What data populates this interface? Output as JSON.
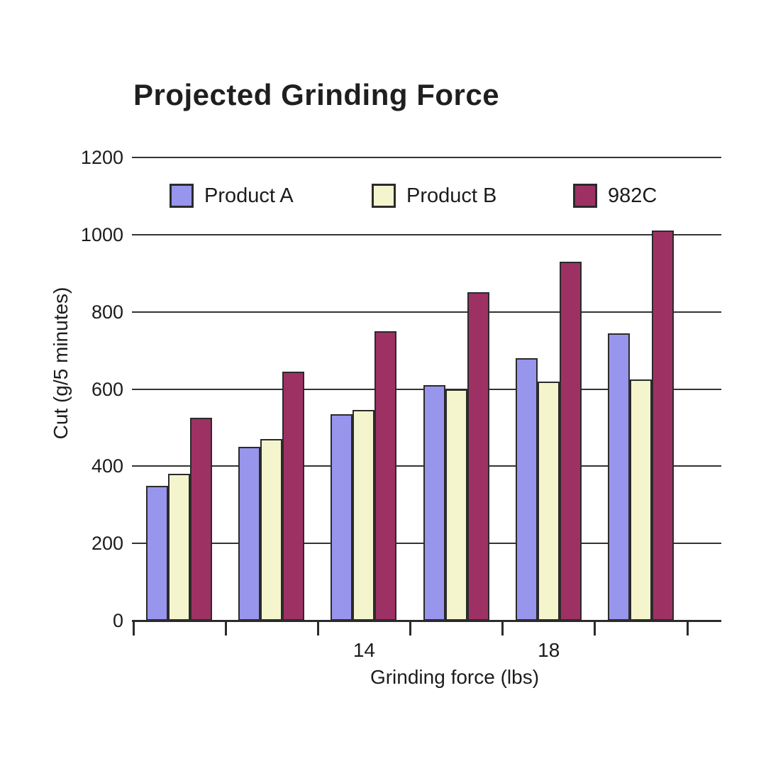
{
  "page": {
    "background": "#ffffff"
  },
  "title": "Projected Grinding Force",
  "chart_data": {
    "type": "bar",
    "title": "Projected Grinding Force",
    "xlabel": "Grinding force (lbs)",
    "ylabel": "Cut (g/5 minutes)",
    "ylim": [
      0,
      1200
    ],
    "y_ticks": [
      0,
      200,
      400,
      600,
      800,
      1000,
      1200
    ],
    "x_tick_labels": [
      "",
      "",
      "14",
      "",
      "18",
      ""
    ],
    "n_groups": 6,
    "grid": true,
    "legend_position": "top",
    "series": [
      {
        "name": "Product A",
        "color": "#9795ec",
        "values": [
          350,
          450,
          535,
          610,
          680,
          745
        ]
      },
      {
        "name": "Product B",
        "color": "#f5f5cd",
        "values": [
          380,
          470,
          545,
          600,
          620,
          625
        ]
      },
      {
        "name": "982C",
        "color": "#9e3164",
        "values": [
          525,
          645,
          750,
          850,
          930,
          1010
        ]
      }
    ],
    "colors": {
      "grid": "#333333",
      "axis": "#2b2b2b",
      "text": "#1c1c1c",
      "bar_border": "#2b2b2b"
    }
  }
}
